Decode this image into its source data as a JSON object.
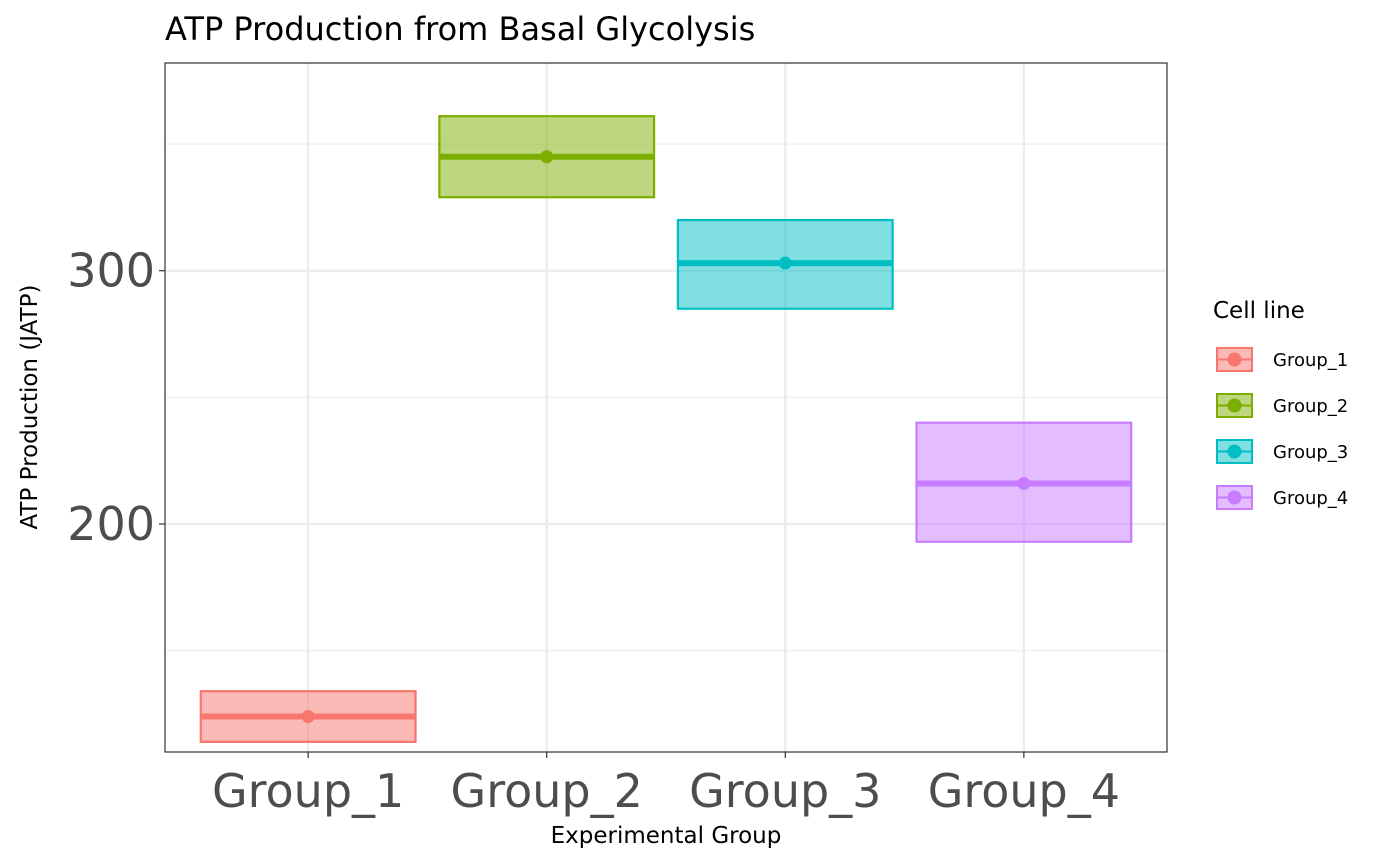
{
  "chart_data": {
    "type": "crossbar",
    "title": "ATP Production from Basal Glycolysis",
    "xlabel": "Experimental Group",
    "ylabel": "ATP Production (JATP)",
    "categories": [
      "Group_1",
      "Group_2",
      "Group_3",
      "Group_4"
    ],
    "y_ticks": [
      200,
      300
    ],
    "ylim": [
      110,
      382
    ],
    "grid": true,
    "legend": {
      "title": "Cell line",
      "position": "right",
      "entries": [
        "Group_1",
        "Group_2",
        "Group_3",
        "Group_4"
      ]
    },
    "series": [
      {
        "name": "Group_1",
        "mean": 124,
        "lower": 114,
        "upper": 134,
        "color": "#F8766D"
      },
      {
        "name": "Group_2",
        "mean": 345,
        "lower": 329,
        "upper": 361,
        "color": "#7CAE00"
      },
      {
        "name": "Group_3",
        "mean": 303,
        "lower": 285,
        "upper": 320,
        "color": "#00BFC4"
      },
      {
        "name": "Group_4",
        "mean": 216,
        "lower": 193,
        "upper": 240,
        "color": "#C77CFF"
      }
    ]
  }
}
